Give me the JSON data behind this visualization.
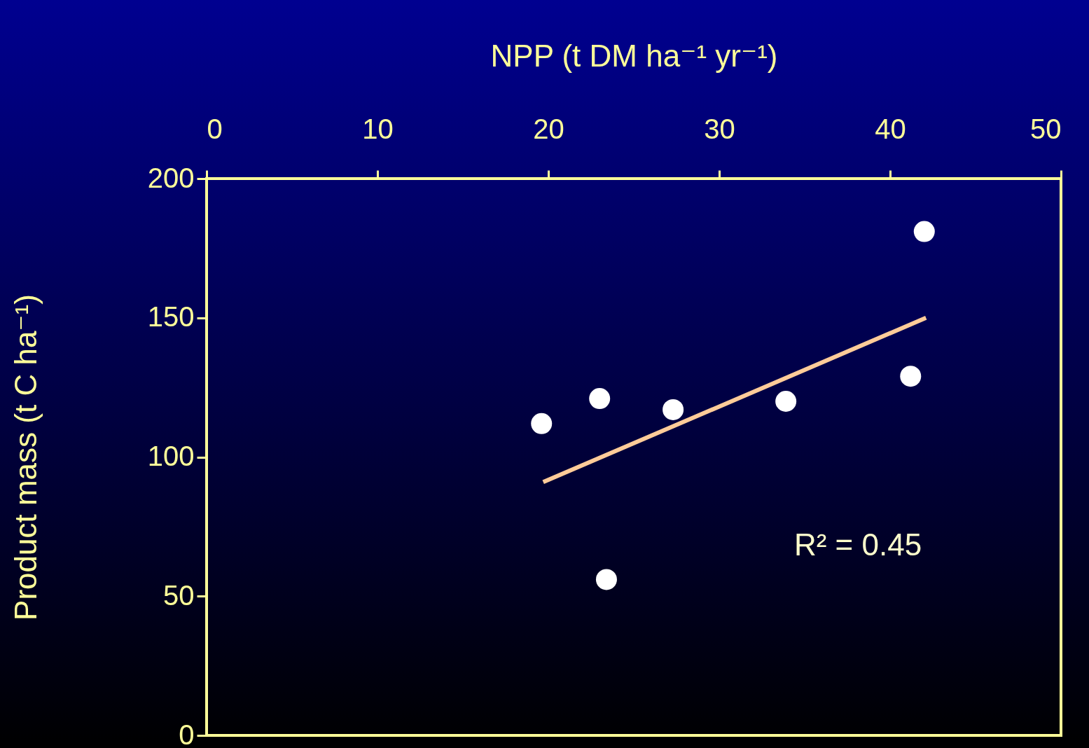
{
  "chart_data": {
    "type": "scatter",
    "xlabel": "NPP (t DM ha⁻¹ yr⁻¹)",
    "ylabel": "Product mass (t C ha⁻¹)",
    "xlim": [
      0,
      50
    ],
    "xticks": [
      0,
      10,
      20,
      30,
      40,
      50
    ],
    "ylim": [
      0,
      200
    ],
    "yticks": [
      0,
      50,
      100,
      150,
      200
    ],
    "grid": false,
    "series": [
      {
        "color": "#ffffff",
        "marker": "circle",
        "x": [
          19.6,
          23.0,
          23.4,
          27.3,
          33.9,
          41.2,
          42.0
        ],
        "values": [
          112,
          121,
          56,
          117,
          120,
          129,
          181
        ]
      },
      {
        "type": "line",
        "color": "#ffcc99",
        "marker": "none",
        "line_style": "solid",
        "x": [
          19.7,
          42.1
        ],
        "values": [
          91,
          150
        ]
      }
    ],
    "annotations": [
      "R² = 0.45"
    ]
  }
}
